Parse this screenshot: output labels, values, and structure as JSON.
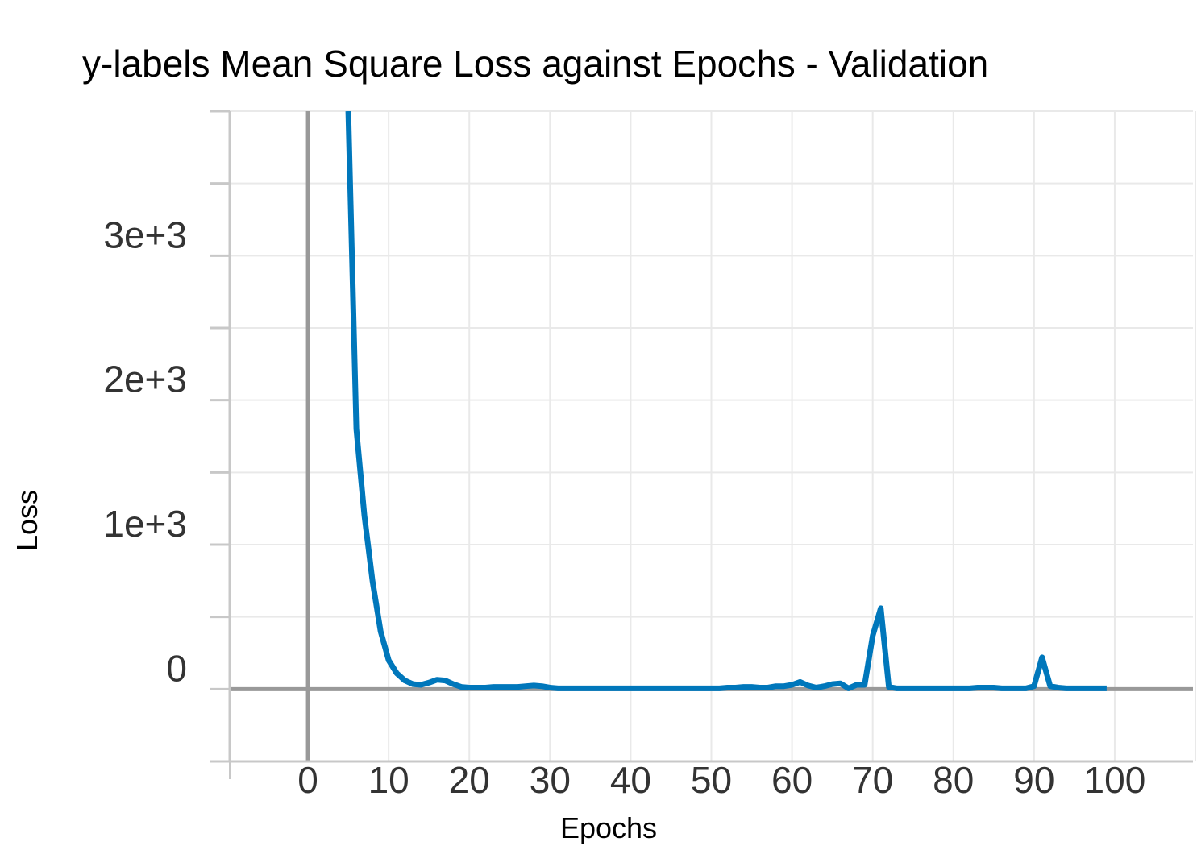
{
  "chart_data": {
    "type": "line",
    "title": "y-labels Mean Square Loss against Epochs - Validation",
    "xlabel": "Epochs",
    "ylabel": "Loss",
    "xlim": [
      -9.7,
      109.7
    ],
    "ylim": [
      -500,
      4000
    ],
    "xticks": [
      0,
      10,
      20,
      30,
      40,
      50,
      60,
      70,
      80,
      90,
      100
    ],
    "xtick_labels": [
      "0",
      "10",
      "20",
      "30",
      "40",
      "50",
      "60",
      "70",
      "80",
      "90",
      "100"
    ],
    "yticks": [
      0,
      1000,
      2000,
      3000
    ],
    "ytick_labels": [
      "0",
      "1e+3",
      "2e+3",
      "3e+3"
    ],
    "grid": true,
    "line_color": "#0077BB",
    "series": [
      {
        "x": [
          5,
          6,
          7,
          8,
          9,
          10,
          11,
          12,
          13,
          14,
          15,
          16,
          17,
          18,
          19,
          20,
          21,
          22,
          23,
          24,
          25,
          26,
          27,
          28,
          29,
          30,
          31,
          32,
          33,
          34,
          35,
          36,
          37,
          38,
          39,
          40,
          41,
          42,
          43,
          44,
          45,
          46,
          47,
          48,
          49,
          50,
          51,
          52,
          53,
          54,
          55,
          56,
          57,
          58,
          59,
          60,
          61,
          62,
          63,
          64,
          65,
          66,
          67,
          68,
          69,
          70,
          71,
          72,
          73,
          74,
          75,
          76,
          77,
          78,
          79,
          80,
          81,
          82,
          83,
          84,
          85,
          86,
          87,
          88,
          89,
          90,
          91,
          92,
          93,
          94,
          95,
          96,
          97,
          98,
          99
        ],
        "values": [
          4000,
          1800,
          1200,
          750,
          400,
          200,
          110,
          60,
          35,
          30,
          45,
          65,
          60,
          35,
          15,
          10,
          10,
          10,
          15,
          15,
          15,
          15,
          20,
          25,
          20,
          10,
          5,
          5,
          5,
          5,
          5,
          5,
          5,
          5,
          5,
          5,
          5,
          5,
          5,
          5,
          5,
          5,
          5,
          5,
          5,
          5,
          5,
          10,
          10,
          15,
          15,
          10,
          10,
          20,
          20,
          30,
          50,
          25,
          10,
          20,
          35,
          40,
          5,
          30,
          30,
          370,
          560,
          15,
          5,
          5,
          5,
          5,
          5,
          5,
          5,
          5,
          5,
          5,
          10,
          10,
          10,
          5,
          5,
          5,
          5,
          20,
          220,
          20,
          10,
          5,
          5,
          5,
          5,
          5,
          5
        ]
      }
    ]
  }
}
